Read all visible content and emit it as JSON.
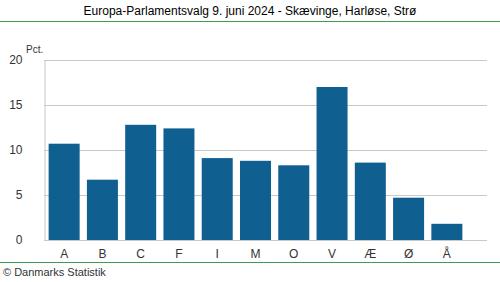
{
  "chart_data": {
    "type": "bar",
    "title": "Europa-Parlamentsvalg 9. juni 2024 - Skævinge, Harløse, Strø",
    "y_label": "Pct.",
    "source": "© Danmarks Statistik",
    "categories": [
      "A",
      "B",
      "C",
      "F",
      "I",
      "M",
      "O",
      "V",
      "Æ",
      "Ø",
      "Å"
    ],
    "values": [
      10.7,
      6.7,
      12.8,
      12.4,
      9.1,
      8.8,
      8.3,
      17.0,
      8.6,
      4.7,
      1.8
    ],
    "color": "#0f5f91",
    "ylim": [
      0,
      20
    ],
    "yticks": [
      0,
      5,
      10,
      15,
      20
    ],
    "grid": true
  }
}
